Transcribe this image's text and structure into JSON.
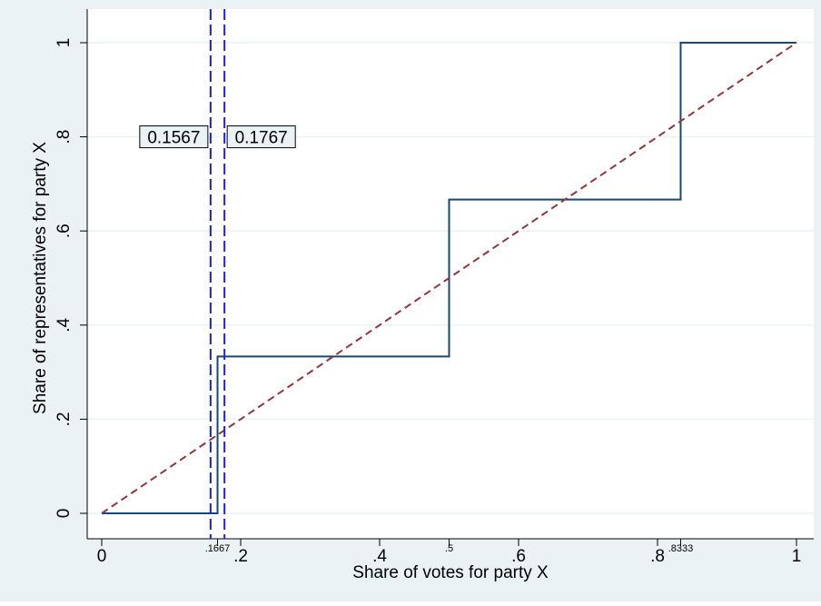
{
  "chart_data": {
    "type": "line",
    "xlabel": "Share of votes for party X",
    "ylabel": "Share of representatives for party X",
    "series": [
      {
        "x": [
          0,
          0.1667,
          0.1667,
          0.5,
          0.5,
          0.8333,
          0.8333,
          1
        ],
        "values": [
          0,
          0,
          0.3333,
          0.3333,
          0.6667,
          0.6667,
          1,
          1
        ],
        "color": "#1a476f",
        "dash": false
      },
      {
        "x": [
          0,
          1
        ],
        "values": [
          0,
          1
        ],
        "color": "#90353b",
        "dash": true
      }
    ],
    "vlines": [
      0.1567,
      0.1767
    ],
    "vline_color": "#1f1fe0",
    "vline_label_y": 0.8,
    "xlim": [
      0,
      1
    ],
    "ylim": [
      0,
      1
    ],
    "xticks": [
      0,
      {
        "value": 0.2,
        "label": ".2"
      },
      {
        "value": 0.4,
        "label": ".4"
      },
      {
        "value": 0.6,
        "label": ".6"
      },
      {
        "value": 0.8,
        "label": ".8"
      },
      1
    ],
    "xticks_extra": [
      {
        "value": 0.1667,
        "label": ".1667"
      },
      {
        "value": 0.5,
        "label": ".5"
      },
      {
        "value": 0.8333,
        "label": ".8333"
      }
    ],
    "yticks": [
      0,
      {
        "value": 0.2,
        "label": ".2"
      },
      {
        "value": 0.4,
        "label": ".4"
      },
      {
        "value": 0.6,
        "label": ".6"
      },
      {
        "value": 0.8,
        "label": ".8"
      },
      1
    ],
    "grid": true
  }
}
